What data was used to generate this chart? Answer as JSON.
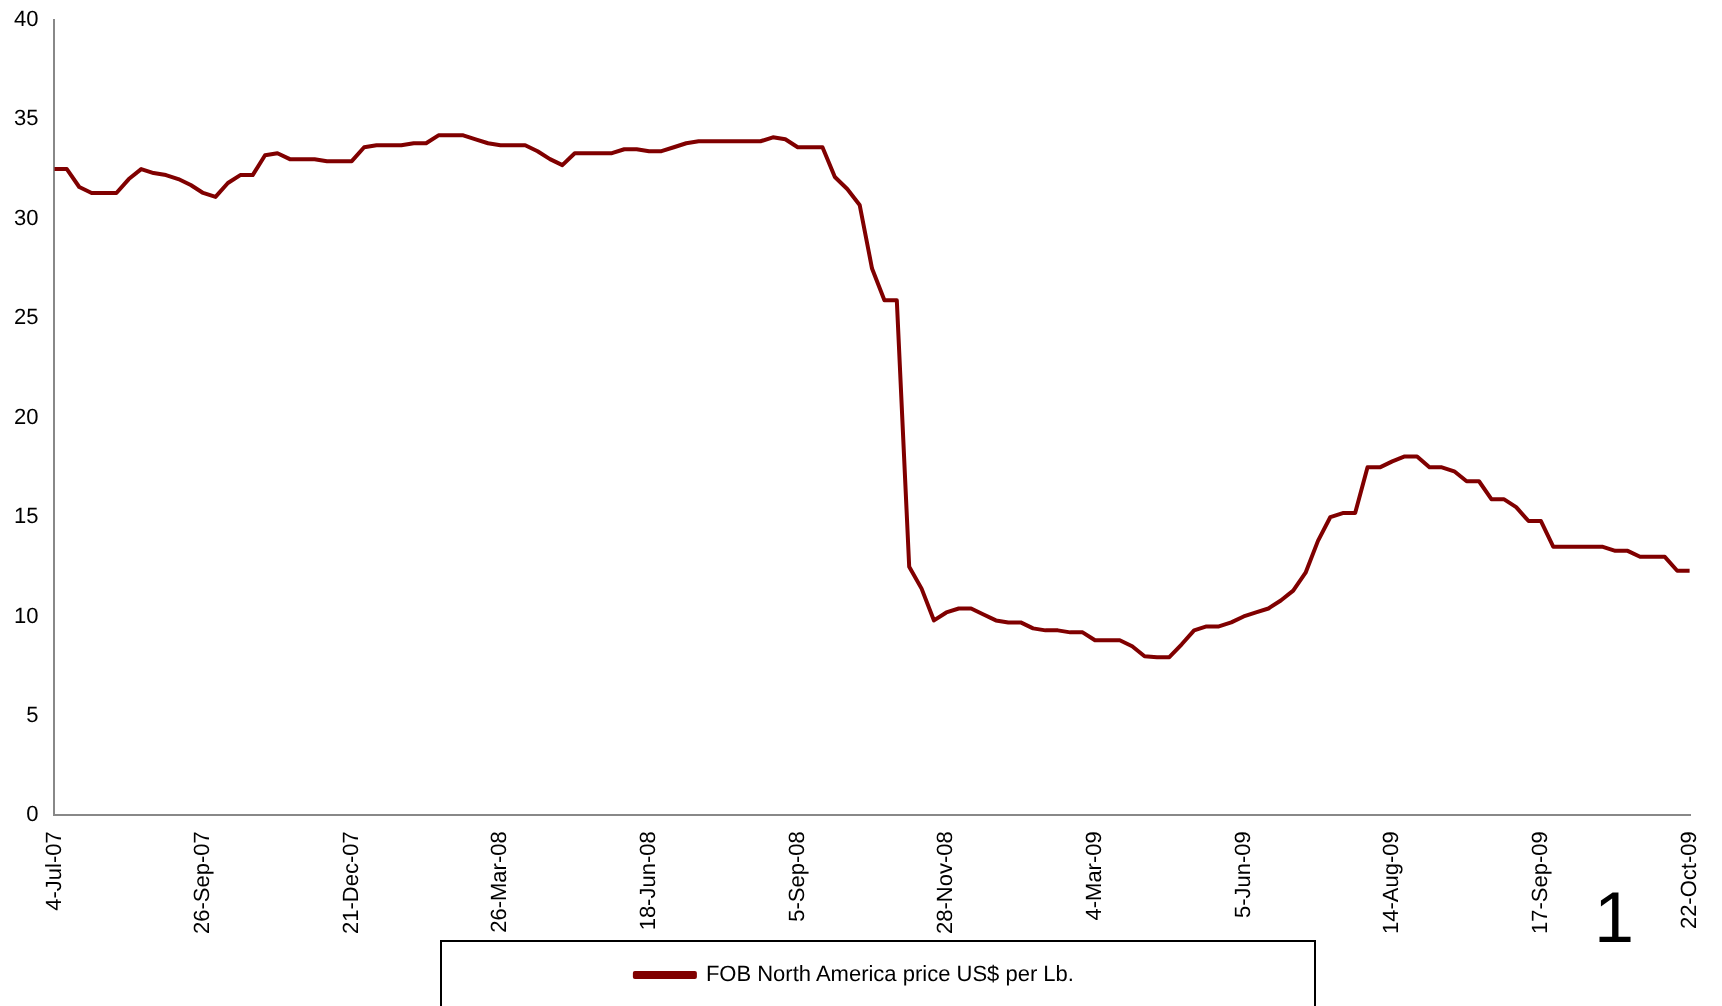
{
  "chart_data": {
    "type": "line",
    "categories": [
      "4-Jul-07",
      null,
      null,
      null,
      null,
      null,
      null,
      null,
      null,
      null,
      null,
      null,
      "26-Sep-07",
      null,
      null,
      null,
      null,
      null,
      null,
      null,
      null,
      null,
      null,
      null,
      "21-Dec-07",
      null,
      null,
      null,
      null,
      null,
      null,
      null,
      null,
      null,
      null,
      null,
      "26-Mar-08",
      null,
      null,
      null,
      null,
      null,
      null,
      null,
      null,
      null,
      null,
      null,
      "18-Jun-08",
      null,
      null,
      null,
      null,
      null,
      null,
      null,
      null,
      null,
      null,
      null,
      "5-Sep-08",
      null,
      null,
      null,
      null,
      null,
      null,
      null,
      null,
      null,
      null,
      null,
      "28-Nov-08",
      null,
      null,
      null,
      null,
      null,
      null,
      null,
      null,
      null,
      null,
      null,
      "4-Mar-09",
      null,
      null,
      null,
      null,
      null,
      null,
      null,
      null,
      null,
      null,
      null,
      "5-Jun-09",
      null,
      null,
      null,
      null,
      null,
      null,
      null,
      null,
      null,
      null,
      null,
      "14-Aug-09",
      null,
      null,
      null,
      null,
      null,
      null,
      null,
      null,
      null,
      null,
      null,
      "17-Sep-09",
      null,
      null,
      null,
      null,
      null,
      null,
      null,
      null,
      null,
      null,
      null,
      "22-Oct-09"
    ],
    "series": [
      {
        "name": "FOB North America price US$ per Lb.",
        "color": "#800000",
        "values": [
          32.5,
          32.5,
          31.6,
          31.3,
          31.3,
          31.3,
          32.0,
          32.5,
          32.3,
          32.2,
          32.0,
          31.7,
          31.3,
          31.1,
          31.8,
          32.2,
          32.2,
          33.2,
          33.3,
          33.0,
          33.0,
          33.0,
          32.9,
          32.9,
          32.9,
          33.6,
          33.7,
          33.7,
          33.7,
          33.8,
          33.8,
          34.2,
          34.2,
          34.2,
          34.0,
          33.8,
          33.7,
          33.7,
          33.7,
          33.4,
          33.0,
          32.7,
          33.3,
          33.3,
          33.3,
          33.3,
          33.5,
          33.5,
          33.4,
          33.4,
          33.6,
          33.8,
          33.9,
          33.9,
          33.9,
          33.9,
          33.9,
          33.9,
          34.1,
          34.0,
          33.6,
          33.6,
          33.6,
          32.1,
          31.5,
          30.7,
          27.5,
          25.9,
          25.9,
          12.5,
          11.4,
          9.8,
          10.2,
          10.4,
          10.4,
          10.1,
          9.8,
          9.7,
          9.7,
          9.4,
          9.3,
          9.3,
          9.2,
          9.2,
          8.8,
          8.8,
          8.8,
          8.5,
          8.0,
          7.95,
          7.95,
          8.6,
          9.3,
          9.5,
          9.5,
          9.7,
          10.0,
          10.2,
          10.4,
          10.8,
          11.3,
          12.2,
          13.8,
          15.0,
          15.2,
          15.2,
          17.5,
          17.5,
          17.8,
          18.05,
          18.05,
          17.5,
          17.5,
          17.3,
          16.8,
          16.8,
          15.9,
          15.9,
          15.5,
          14.8,
          14.8,
          13.5,
          13.5,
          13.5,
          13.5,
          13.5,
          13.3,
          13.3,
          13.0,
          13.0,
          13.0,
          12.3,
          12.3
        ]
      }
    ],
    "ylim": [
      0,
      40
    ],
    "yticks": [
      0,
      5,
      10,
      15,
      20,
      25,
      30,
      35,
      40
    ],
    "grid": false,
    "legend": "bottom",
    "marker": "none",
    "line_style": "solid",
    "annotations": [
      "1"
    ]
  }
}
